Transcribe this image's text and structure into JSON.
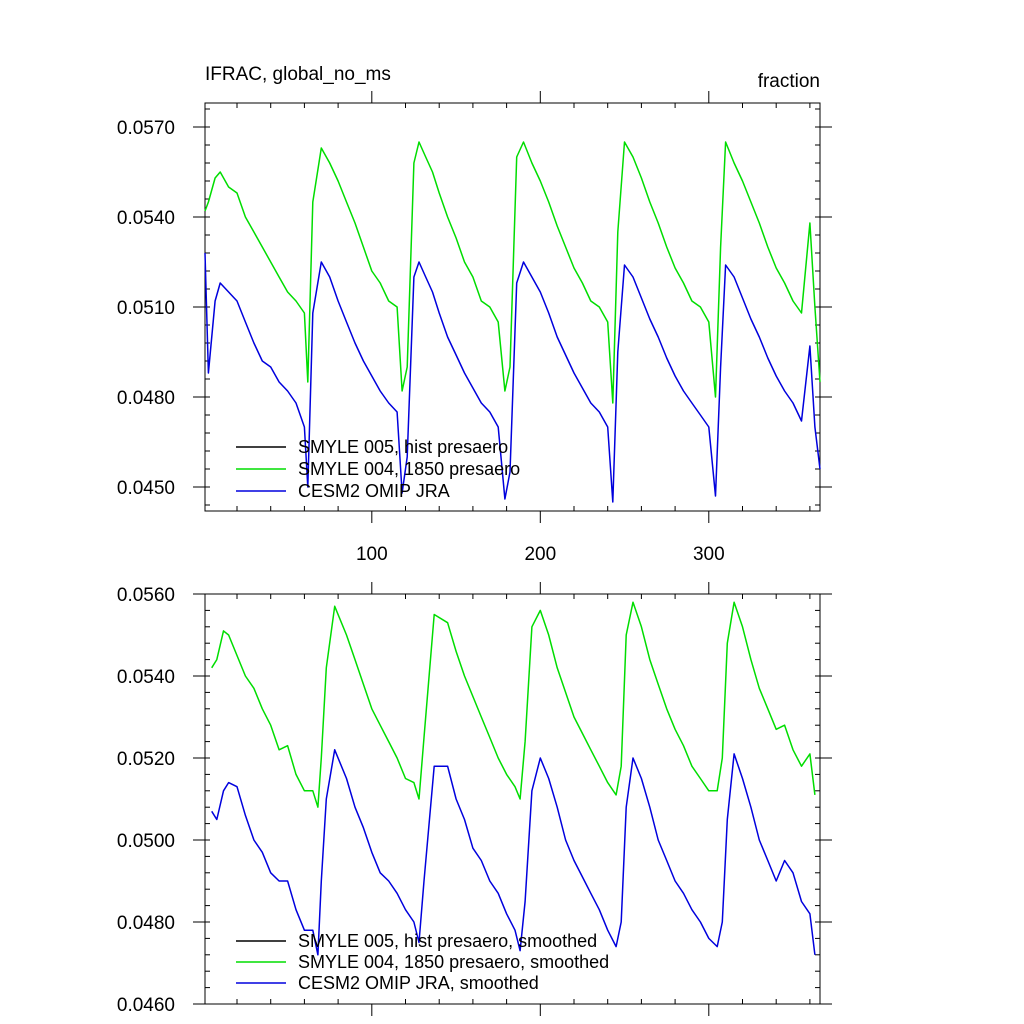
{
  "chart_data": [
    {
      "type": "line",
      "title": "IFRAC, global_no_ms",
      "units": "fraction",
      "xlim": [
        1,
        366
      ],
      "ylim": [
        0.0442,
        0.0578
      ],
      "x_ticks": [
        100,
        200,
        300
      ],
      "x_tick_labels": [
        "100",
        "200",
        "300"
      ],
      "y_ticks": [
        0.057,
        0.054,
        0.051,
        0.048,
        0.045
      ],
      "y_tick_labels": [
        "0.0570",
        "0.0540",
        "0.0510",
        "0.0480",
        "0.0450"
      ],
      "legend": [
        {
          "label": "SMYLE 005, hist presaero",
          "color": "#000000"
        },
        {
          "label": "SMYLE 004, 1850 presaero",
          "color": "#00dd00"
        },
        {
          "label": "CESM2 OMIP JRA",
          "color": "#0000dd"
        }
      ],
      "series": [
        {
          "name": "SMYLE 004, 1850 presaero",
          "color": "#00dd00",
          "x": [
            1,
            3,
            7,
            10,
            15,
            20,
            25,
            30,
            35,
            40,
            45,
            50,
            55,
            60,
            62,
            65,
            70,
            75,
            80,
            85,
            90,
            95,
            100,
            105,
            110,
            115,
            118,
            121,
            125,
            128,
            132,
            136,
            140,
            145,
            150,
            155,
            160,
            165,
            170,
            175,
            179,
            182,
            186,
            190,
            195,
            200,
            205,
            210,
            215,
            220,
            225,
            230,
            235,
            240,
            243,
            246,
            250,
            255,
            260,
            265,
            270,
            275,
            280,
            285,
            290,
            295,
            300,
            304,
            307,
            310,
            315,
            320,
            325,
            330,
            335,
            340,
            345,
            350,
            355,
            360,
            363,
            366
          ],
          "values": [
            0.0542,
            0.0545,
            0.0553,
            0.0555,
            0.055,
            0.0548,
            0.054,
            0.0535,
            0.053,
            0.0525,
            0.052,
            0.0515,
            0.0512,
            0.0508,
            0.0485,
            0.0545,
            0.0563,
            0.0558,
            0.0552,
            0.0545,
            0.0538,
            0.053,
            0.0522,
            0.0518,
            0.0512,
            0.051,
            0.0482,
            0.049,
            0.0558,
            0.0565,
            0.056,
            0.0555,
            0.0548,
            0.054,
            0.0533,
            0.0525,
            0.052,
            0.0512,
            0.051,
            0.0505,
            0.0482,
            0.049,
            0.056,
            0.0565,
            0.0558,
            0.0552,
            0.0545,
            0.0537,
            0.053,
            0.0523,
            0.0518,
            0.0512,
            0.051,
            0.0505,
            0.0478,
            0.0535,
            0.0565,
            0.056,
            0.0553,
            0.0545,
            0.0538,
            0.053,
            0.0523,
            0.0518,
            0.0512,
            0.051,
            0.0505,
            0.048,
            0.053,
            0.0565,
            0.0558,
            0.0552,
            0.0545,
            0.0538,
            0.053,
            0.0523,
            0.0518,
            0.0512,
            0.0508,
            0.0538,
            0.051,
            0.0485
          ]
        },
        {
          "name": "CESM2 OMIP JRA",
          "color": "#0000dd",
          "x": [
            1,
            3,
            7,
            10,
            15,
            20,
            25,
            30,
            35,
            40,
            45,
            50,
            55,
            60,
            62,
            65,
            70,
            75,
            80,
            85,
            90,
            95,
            100,
            105,
            110,
            115,
            118,
            121,
            125,
            128,
            132,
            136,
            140,
            145,
            150,
            155,
            160,
            165,
            170,
            175,
            179,
            182,
            186,
            190,
            195,
            200,
            205,
            210,
            215,
            220,
            225,
            230,
            235,
            240,
            243,
            246,
            250,
            255,
            260,
            265,
            270,
            275,
            280,
            285,
            290,
            295,
            300,
            304,
            307,
            310,
            315,
            320,
            325,
            330,
            335,
            340,
            345,
            350,
            355,
            360,
            363,
            366
          ],
          "values": [
            0.0528,
            0.0488,
            0.0512,
            0.0518,
            0.0515,
            0.0512,
            0.0505,
            0.0498,
            0.0492,
            0.049,
            0.0485,
            0.0482,
            0.0478,
            0.047,
            0.045,
            0.0508,
            0.0525,
            0.052,
            0.0512,
            0.0505,
            0.0498,
            0.0492,
            0.0487,
            0.0482,
            0.0478,
            0.0475,
            0.0448,
            0.046,
            0.052,
            0.0525,
            0.052,
            0.0515,
            0.0508,
            0.05,
            0.0494,
            0.0488,
            0.0483,
            0.0478,
            0.0475,
            0.047,
            0.0446,
            0.0455,
            0.0518,
            0.0525,
            0.052,
            0.0515,
            0.0508,
            0.05,
            0.0494,
            0.0488,
            0.0483,
            0.0478,
            0.0475,
            0.047,
            0.0445,
            0.0495,
            0.0524,
            0.052,
            0.0513,
            0.0506,
            0.05,
            0.0493,
            0.0487,
            0.0482,
            0.0478,
            0.0474,
            0.047,
            0.0447,
            0.049,
            0.0524,
            0.052,
            0.0513,
            0.0506,
            0.05,
            0.0493,
            0.0487,
            0.0482,
            0.0478,
            0.0472,
            0.0497,
            0.047,
            0.0456
          ]
        }
      ]
    },
    {
      "type": "line",
      "title": "",
      "units": "",
      "xlim": [
        1,
        366
      ],
      "ylim": [
        0.046,
        0.056
      ],
      "x_ticks": [
        100,
        200,
        300
      ],
      "x_tick_labels": [],
      "y_ticks": [
        0.056,
        0.054,
        0.052,
        0.05,
        0.048,
        0.046
      ],
      "y_tick_labels": [
        "0.0560",
        "0.0540",
        "0.0520",
        "0.0500",
        "0.0480",
        "0.0460"
      ],
      "legend": [
        {
          "label": "SMYLE 005, hist presaero, smoothed",
          "color": "#000000"
        },
        {
          "label": "SMYLE 004, 1850 presaero, smoothed",
          "color": "#00dd00"
        },
        {
          "label": "CESM2 OMIP JRA, smoothed",
          "color": "#0000dd"
        }
      ],
      "series": [
        {
          "name": "SMYLE 004, 1850 presaero, smoothed",
          "color": "#00dd00",
          "x": [
            5,
            8,
            12,
            15,
            20,
            25,
            30,
            35,
            40,
            45,
            50,
            55,
            60,
            65,
            68,
            70,
            73,
            78,
            85,
            90,
            95,
            100,
            105,
            110,
            115,
            120,
            125,
            128,
            131,
            137,
            145,
            150,
            155,
            160,
            165,
            170,
            175,
            180,
            185,
            188,
            191,
            195,
            200,
            205,
            210,
            215,
            220,
            225,
            230,
            235,
            240,
            245,
            248,
            251,
            255,
            260,
            265,
            270,
            275,
            280,
            285,
            290,
            295,
            300,
            305,
            308,
            311,
            315,
            320,
            325,
            330,
            335,
            340,
            345,
            350,
            355,
            360,
            363
          ],
          "values": [
            0.0542,
            0.0544,
            0.0551,
            0.055,
            0.0545,
            0.054,
            0.0537,
            0.0532,
            0.0528,
            0.0522,
            0.0523,
            0.0516,
            0.0512,
            0.0512,
            0.0508,
            0.052,
            0.0542,
            0.0557,
            0.055,
            0.0544,
            0.0538,
            0.0532,
            0.0528,
            0.0524,
            0.052,
            0.0515,
            0.0514,
            0.051,
            0.0525,
            0.0555,
            0.0553,
            0.0546,
            0.054,
            0.0535,
            0.053,
            0.0525,
            0.052,
            0.0516,
            0.0513,
            0.051,
            0.0524,
            0.0552,
            0.0556,
            0.055,
            0.0542,
            0.0536,
            0.053,
            0.0526,
            0.0522,
            0.0518,
            0.0514,
            0.0511,
            0.0518,
            0.055,
            0.0558,
            0.0552,
            0.0544,
            0.0538,
            0.0532,
            0.0527,
            0.0523,
            0.0518,
            0.0515,
            0.0512,
            0.0512,
            0.052,
            0.0548,
            0.0558,
            0.0552,
            0.0544,
            0.0537,
            0.0532,
            0.0527,
            0.0528,
            0.0522,
            0.0518,
            0.0521,
            0.0511
          ]
        },
        {
          "name": "CESM2 OMIP JRA, smoothed",
          "color": "#0000dd",
          "x": [
            5,
            8,
            12,
            15,
            20,
            25,
            30,
            35,
            40,
            45,
            50,
            55,
            60,
            65,
            68,
            70,
            73,
            78,
            85,
            90,
            95,
            100,
            105,
            110,
            115,
            120,
            125,
            128,
            131,
            137,
            145,
            150,
            155,
            160,
            165,
            170,
            175,
            180,
            185,
            188,
            191,
            195,
            200,
            205,
            210,
            215,
            220,
            225,
            230,
            235,
            240,
            245,
            248,
            251,
            255,
            260,
            265,
            270,
            275,
            280,
            285,
            290,
            295,
            300,
            305,
            308,
            311,
            315,
            320,
            325,
            330,
            335,
            340,
            345,
            350,
            355,
            360,
            363
          ],
          "values": [
            0.0507,
            0.0505,
            0.0512,
            0.0514,
            0.0513,
            0.0506,
            0.05,
            0.0497,
            0.0492,
            0.049,
            0.049,
            0.0483,
            0.0478,
            0.0478,
            0.0472,
            0.049,
            0.051,
            0.0522,
            0.0515,
            0.0508,
            0.0503,
            0.0497,
            0.0492,
            0.049,
            0.0487,
            0.0483,
            0.048,
            0.0475,
            0.049,
            0.0518,
            0.0518,
            0.051,
            0.0505,
            0.0498,
            0.0495,
            0.049,
            0.0487,
            0.0482,
            0.0478,
            0.0473,
            0.0485,
            0.0512,
            0.052,
            0.0515,
            0.0508,
            0.05,
            0.0495,
            0.0491,
            0.0487,
            0.0483,
            0.0478,
            0.0474,
            0.048,
            0.0508,
            0.052,
            0.0515,
            0.0508,
            0.05,
            0.0495,
            0.049,
            0.0487,
            0.0483,
            0.048,
            0.0476,
            0.0474,
            0.048,
            0.0505,
            0.0521,
            0.0515,
            0.0508,
            0.05,
            0.0495,
            0.049,
            0.0495,
            0.0492,
            0.0485,
            0.0482,
            0.0472
          ]
        }
      ]
    }
  ]
}
